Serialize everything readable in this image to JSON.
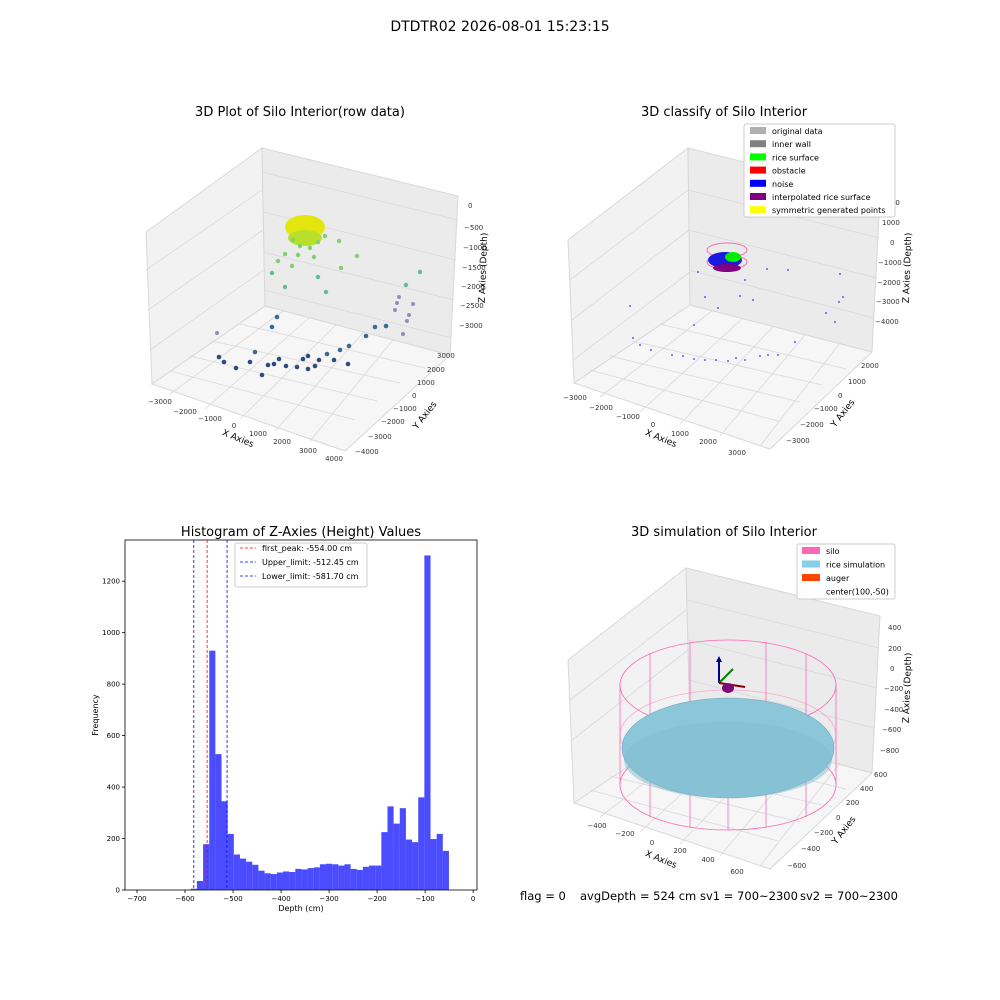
{
  "figure": {
    "suptitle": "DTDTR02 2026-08-01 15:23:15",
    "footer": {
      "flag": "flag = 0",
      "avg_depth": "avgDepth = 524 cm",
      "sv1": "sv1 = 700~2300",
      "sv2": "sv2 = 700~2300"
    }
  },
  "panels": {
    "raw": {
      "title": "3D Plot of Silo Interior(row data)",
      "xlabel": "X Axies",
      "ylabel": "Y Axies",
      "zlabel": "Z Axies (Depth)",
      "xticks": [
        "−3000",
        "−2000",
        "−1000",
        "0",
        "1000",
        "2000",
        "3000",
        "4000"
      ],
      "yticks": [
        "3000",
        "2000",
        "1000",
        "0",
        "−1000",
        "−2000",
        "−3000",
        "−4000"
      ],
      "zticks": [
        "0",
        "−500",
        "−1000",
        "−1500",
        "−2000",
        "−2500",
        "−3000"
      ]
    },
    "classify": {
      "title": "3D classify of Silo Interior",
      "xlabel": "X Axies",
      "ylabel": "Y Axies",
      "zlabel": "Z Axies (Depth)",
      "xticks": [
        "−3000",
        "−2000",
        "−1000",
        "0",
        "1000",
        "2000",
        "3000"
      ],
      "yticks": [
        "2000",
        "1000",
        "0",
        "−1000",
        "−2000",
        "−3000"
      ],
      "zticks": [
        "2000",
        "1000",
        "0",
        "−1000",
        "−2000",
        "−3000",
        "−4000"
      ],
      "legend": [
        {
          "label": "original data",
          "color": "#b0b0b0"
        },
        {
          "label": "inner wall",
          "color": "#808080"
        },
        {
          "label": "rice surface",
          "color": "#00ff00"
        },
        {
          "label": "obstacle",
          "color": "#ff0000"
        },
        {
          "label": "noise",
          "color": "#0000ff"
        },
        {
          "label": "interpolated rice surface",
          "color": "#800080"
        },
        {
          "label": "symmetric generated points",
          "color": "#ffff00"
        }
      ]
    },
    "simulation": {
      "title": "3D simulation of Silo Interior",
      "xlabel": "X Axies",
      "ylabel": "Y Axies",
      "zlabel": "Z Axies (Depth)",
      "xticks": [
        "−400",
        "−200",
        "0",
        "200",
        "400",
        "600"
      ],
      "yticks": [
        "600",
        "400",
        "200",
        "0",
        "−200",
        "−400",
        "−600"
      ],
      "zticks": [
        "400",
        "200",
        "0",
        "−200",
        "−400",
        "−600",
        "−800"
      ],
      "legend": [
        {
          "label": "silo",
          "color": "#ff69b4"
        },
        {
          "label": "rice simulation",
          "color": "#87ceeb"
        },
        {
          "label": "auger",
          "color": "#ff4500"
        },
        {
          "label": "center(100,-50)",
          "color": ""
        }
      ]
    }
  },
  "chart_data": {
    "type": "bar",
    "title": "Histogram of Z-Axies (Height) Values",
    "xlabel": "Depth (cm)",
    "ylabel": "Frequency",
    "xlim": [
      -725,
      8
    ],
    "ylim": [
      0,
      1360
    ],
    "xticks": [
      -700,
      -600,
      -500,
      -400,
      -300,
      -200,
      -100,
      0
    ],
    "yticks": [
      0,
      200,
      400,
      600,
      800,
      1000,
      1200
    ],
    "bar_color": "#0000ff",
    "bin_start": -588,
    "bin_width": 12.8,
    "values": [
      5,
      35,
      178,
      930,
      528,
      345,
      218,
      138,
      122,
      110,
      98,
      75,
      65,
      62,
      68,
      72,
      70,
      82,
      80,
      85,
      88,
      100,
      102,
      100,
      95,
      100,
      82,
      78,
      90,
      95,
      95,
      225,
      325,
      258,
      318,
      196,
      186,
      360,
      1300,
      198,
      218,
      152
    ],
    "lines": [
      {
        "label": "first_peak: -554.00 cm",
        "x": -554.0,
        "color": "#ff0000"
      },
      {
        "label": "Upper_limit: -512.45 cm",
        "x": -512.45,
        "color": "#0000ff"
      },
      {
        "label": "Lower_limit: -581.70 cm",
        "x": -581.7,
        "color": "#0000ff"
      }
    ],
    "legend_position": "upper center"
  }
}
